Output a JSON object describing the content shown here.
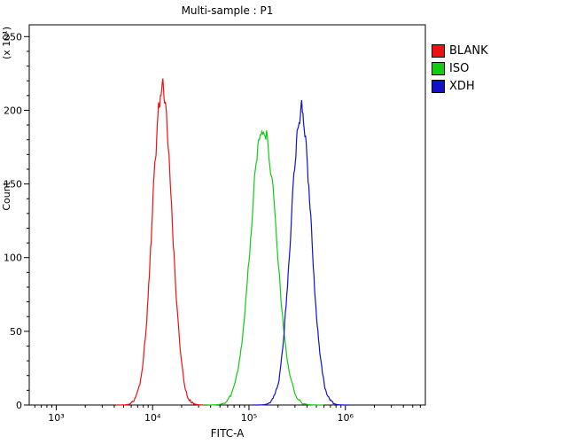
{
  "chart_data": {
    "type": "line",
    "title": "Multi-sample : P1",
    "xlabel": "FITC-A",
    "ylabel": "Count",
    "ylabel_multiplier": "(x 10¹)",
    "x_scale": "log10",
    "x_log_range": [
      2.72,
      6.83
    ],
    "x_major_ticks": [
      3,
      4,
      5,
      6
    ],
    "x_major_tick_labels": [
      "10³",
      "10⁴",
      "10⁵",
      "10⁶"
    ],
    "ylim": [
      0,
      258
    ],
    "y_major_step": 50,
    "y_minor_step": 10,
    "y_tick_labels": [
      "0",
      "50",
      "100",
      "150",
      "200",
      "250"
    ],
    "grid": "off",
    "legend_position": "top-right",
    "series": [
      {
        "name": "BLANK",
        "color": "#ee1111",
        "peak_x": 12600,
        "peak_log10_x": 4.1,
        "sigma_log10": 0.1,
        "peak_height": 215
      },
      {
        "name": "ISO",
        "color": "#11cc11",
        "peak_x": 141000,
        "peak_log10_x": 5.15,
        "sigma_log10": 0.13,
        "peak_height": 192
      },
      {
        "name": "XDH",
        "color": "#1111cc",
        "peak_x": 347000,
        "peak_log10_x": 5.54,
        "sigma_log10": 0.105,
        "peak_height": 200
      }
    ]
  }
}
